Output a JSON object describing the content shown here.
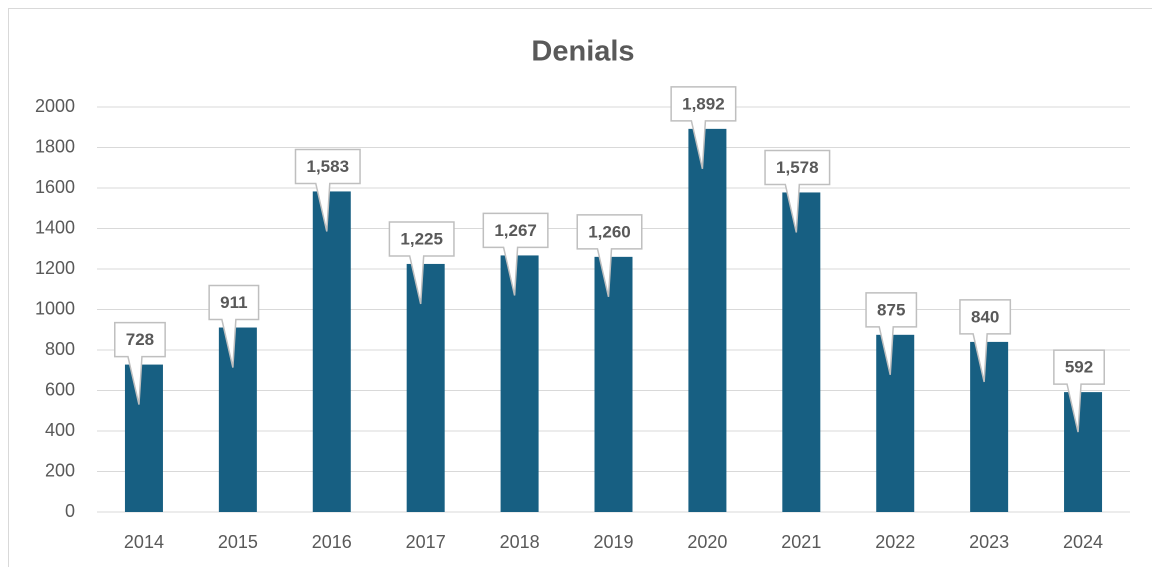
{
  "chart_data": {
    "type": "bar",
    "title": "Denials",
    "categories": [
      "2014",
      "2015",
      "2016",
      "2017",
      "2018",
      "2019",
      "2020",
      "2021",
      "2022",
      "2023",
      "2024"
    ],
    "values": [
      728,
      911,
      1583,
      1225,
      1267,
      1260,
      1892,
      1578,
      875,
      840,
      592
    ],
    "value_labels": [
      "728",
      "911",
      "1,583",
      "1,225",
      "1,267",
      "1,260",
      "1,892",
      "1,578",
      "875",
      "840",
      "592"
    ],
    "color": "#175f82",
    "ylim": [
      0,
      2000
    ],
    "yticks": [
      0,
      200,
      400,
      600,
      800,
      1000,
      1200,
      1400,
      1600,
      1800,
      2000
    ],
    "grid": true
  }
}
